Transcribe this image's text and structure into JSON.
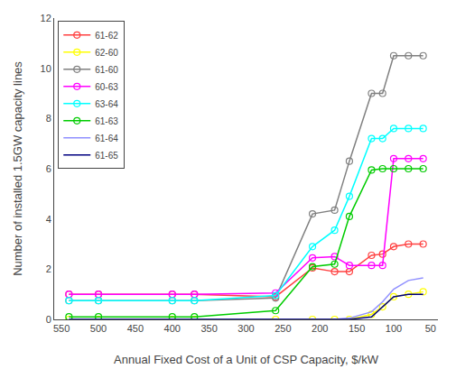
{
  "chart_data": {
    "type": "line",
    "xlabel": "Annual Fixed Cost of a Unit of CSP Capacity, $/kW",
    "ylabel": "Number of installed 1.5GW capacity lines",
    "x": [
      540,
      500,
      400,
      370,
      260,
      210,
      180,
      160,
      130,
      115,
      100,
      80,
      60
    ],
    "xlim": [
      560,
      40
    ],
    "xticks": [
      550,
      500,
      450,
      400,
      350,
      300,
      250,
      200,
      150,
      100,
      50
    ],
    "ylim": [
      0,
      12
    ],
    "yticks": [
      0,
      2,
      4,
      6,
      8,
      10,
      12
    ],
    "grid": false,
    "legend": "upper left",
    "series": [
      {
        "name": "61-62",
        "color": "#ff4040",
        "marker": "circle-open",
        "values": [
          1.0,
          1.0,
          1.0,
          1.0,
          0.9,
          2.05,
          1.9,
          1.9,
          2.55,
          2.6,
          2.9,
          3.0,
          3.0
        ]
      },
      {
        "name": "62-60",
        "color": "#ffff00",
        "marker": "circle-open",
        "values": [
          0.0,
          0.0,
          0.0,
          0.0,
          0.0,
          0.0,
          0.0,
          0.0,
          0.2,
          0.5,
          0.9,
          1.0,
          1.1
        ]
      },
      {
        "name": "61-60",
        "color": "#808080",
        "marker": "circle-open",
        "values": [
          0.75,
          0.75,
          0.75,
          0.75,
          0.85,
          4.2,
          4.35,
          6.3,
          9.0,
          9.0,
          10.5,
          10.5,
          10.5
        ]
      },
      {
        "name": "60-63",
        "color": "#ff00ff",
        "marker": "circle-open",
        "values": [
          1.0,
          1.0,
          1.0,
          1.0,
          1.05,
          2.45,
          2.5,
          2.15,
          2.15,
          2.15,
          6.4,
          6.4,
          6.4
        ]
      },
      {
        "name": "63-64",
        "color": "#00ffff",
        "marker": "circle-open",
        "values": [
          0.75,
          0.75,
          0.75,
          0.75,
          0.95,
          2.9,
          3.55,
          4.9,
          7.2,
          7.2,
          7.6,
          7.6,
          7.6
        ]
      },
      {
        "name": "61-63",
        "color": "#00cc00",
        "marker": "circle-open",
        "values": [
          0.1,
          0.1,
          0.1,
          0.1,
          0.35,
          2.1,
          2.2,
          4.1,
          5.95,
          6.0,
          6.0,
          6.0,
          6.0
        ]
      },
      {
        "name": "61-64",
        "color": "#9090ff",
        "marker": "none",
        "values": [
          0.0,
          0.0,
          0.0,
          0.0,
          0.0,
          0.0,
          0.0,
          0.05,
          0.3,
          0.7,
          1.2,
          1.55,
          1.65
        ]
      },
      {
        "name": "61-65",
        "color": "#000080",
        "marker": "none",
        "values": [
          0.0,
          0.0,
          0.0,
          0.0,
          0.0,
          0.0,
          0.0,
          0.0,
          0.1,
          0.5,
          0.9,
          1.0,
          1.0
        ]
      }
    ]
  }
}
